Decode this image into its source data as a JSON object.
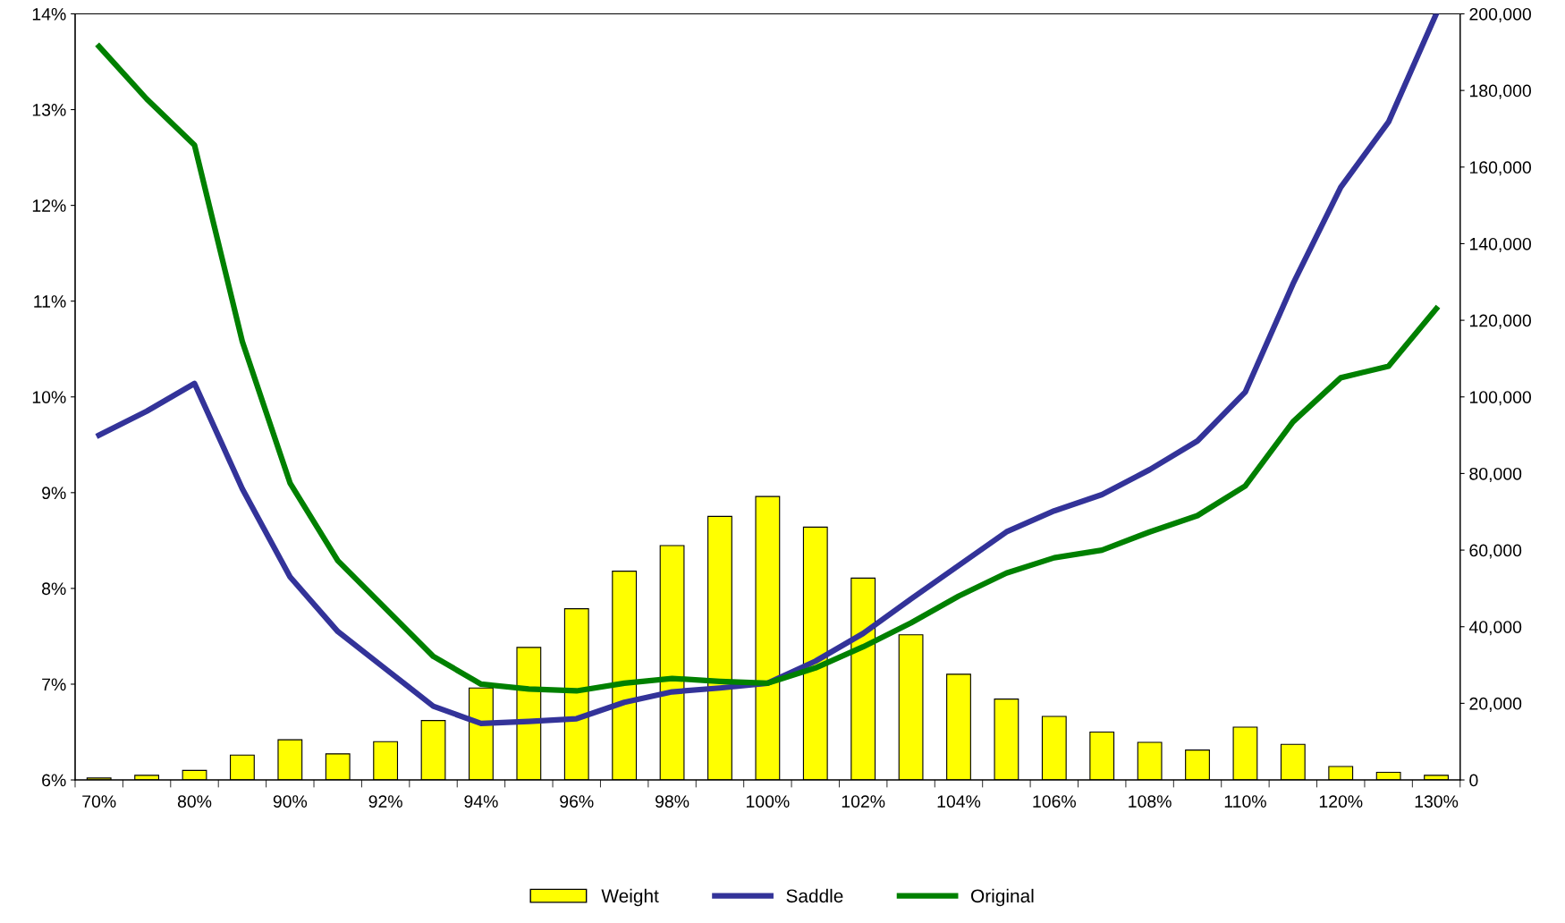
{
  "chart_data": {
    "type": "line",
    "categories": [
      "70%",
      null,
      "80%",
      null,
      "90%",
      null,
      "92%",
      null,
      "94%",
      null,
      "96%",
      null,
      "98%",
      null,
      "100%",
      null,
      "102%",
      null,
      "104%",
      null,
      "106%",
      null,
      "108%",
      null,
      "110%",
      null,
      "120%",
      null,
      "130%"
    ],
    "series": [
      {
        "name": "Weight",
        "type": "bar",
        "axis": "y2",
        "color": "#ffff00",
        "values": [
          500,
          1200,
          2500,
          6500,
          10500,
          6800,
          10000,
          15500,
          24000,
          34600,
          44700,
          54500,
          61200,
          68800,
          74000,
          66000,
          52700,
          37900,
          27600,
          21100,
          16600,
          12500,
          9800,
          7800,
          13800,
          9300,
          3500,
          2000,
          1200
        ]
      },
      {
        "name": "Saddle",
        "color": "#333399",
        "values": [
          9.6,
          9.85,
          10.14,
          9.04,
          8.12,
          7.55,
          7.16,
          6.77,
          6.59,
          6.61,
          6.64,
          6.81,
          6.92,
          6.96,
          7.01,
          7.24,
          7.53,
          7.89,
          8.24,
          8.59,
          8.81,
          8.98,
          9.24,
          9.54,
          10.05,
          11.18,
          12.19,
          12.87,
          14.0
        ]
      },
      {
        "name": "Original",
        "color": "#008000",
        "values": [
          13.66,
          13.11,
          12.63,
          10.58,
          9.1,
          8.29,
          7.79,
          7.29,
          7.0,
          6.95,
          6.93,
          7.01,
          7.06,
          7.03,
          7.01,
          7.17,
          7.39,
          7.64,
          7.92,
          8.16,
          8.32,
          8.4,
          8.59,
          8.76,
          9.07,
          9.74,
          10.2,
          10.32,
          10.92
        ]
      }
    ],
    "ylim": [
      6,
      14
    ],
    "yticks": [
      {
        "value": 6,
        "label": "6%"
      },
      {
        "value": 7,
        "label": "7%"
      },
      {
        "value": 8,
        "label": "8%"
      },
      {
        "value": 9,
        "label": "9%"
      },
      {
        "value": 10,
        "label": "10%"
      },
      {
        "value": 11,
        "label": "11%"
      },
      {
        "value": 12,
        "label": "12%"
      },
      {
        "value": 13,
        "label": "13%"
      },
      {
        "value": 14,
        "label": "14%"
      }
    ],
    "y2lim": [
      0,
      200000
    ],
    "y2ticks": [
      {
        "value": 0,
        "label": "0"
      },
      {
        "value": 20000,
        "label": "20,000"
      },
      {
        "value": 40000,
        "label": "40,000"
      },
      {
        "value": 60000,
        "label": "60,000"
      },
      {
        "value": 80000,
        "label": "80,000"
      },
      {
        "value": 100000,
        "label": "100,000"
      },
      {
        "value": 120000,
        "label": "120,000"
      },
      {
        "value": 140000,
        "label": "140,000"
      },
      {
        "value": 160000,
        "label": "160,000"
      },
      {
        "value": 180000,
        "label": "180,000"
      },
      {
        "value": 200000,
        "label": "200,000"
      }
    ],
    "grid": false,
    "legend": "bottom",
    "marker": "none",
    "line_style": "solid"
  }
}
